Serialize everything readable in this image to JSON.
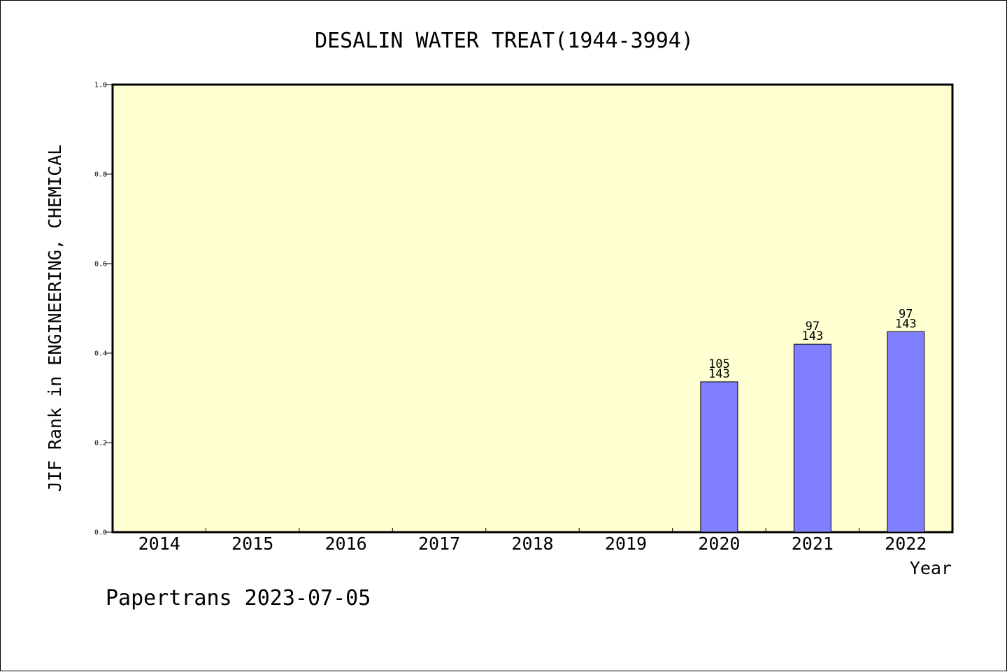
{
  "chart_data": {
    "type": "bar",
    "title": "DESALIN WATER TREAT(1944-3994)",
    "ylabel": "JIF Rank in ENGINEERING, CHEMICAL",
    "xlabel": "Year",
    "categories": [
      "2014",
      "2015",
      "2016",
      "2017",
      "2018",
      "2019",
      "2020",
      "2021",
      "2022"
    ],
    "values": [
      null,
      null,
      null,
      null,
      null,
      null,
      0.336,
      0.42,
      0.448
    ],
    "rank": [
      null,
      null,
      null,
      null,
      null,
      null,
      "105",
      "97",
      "97"
    ],
    "total": [
      null,
      null,
      null,
      null,
      null,
      null,
      "143",
      "143",
      "143"
    ],
    "ylim": [
      0,
      1
    ],
    "yticks": [
      "0.0",
      "0.2",
      "0.4",
      "0.6",
      "0.8",
      "1.0"
    ],
    "grid": false,
    "plot_background": "#ffffd2",
    "bar_color": "#8080ff"
  },
  "footer": {
    "credit": "Papertrans 2023-07-05"
  }
}
